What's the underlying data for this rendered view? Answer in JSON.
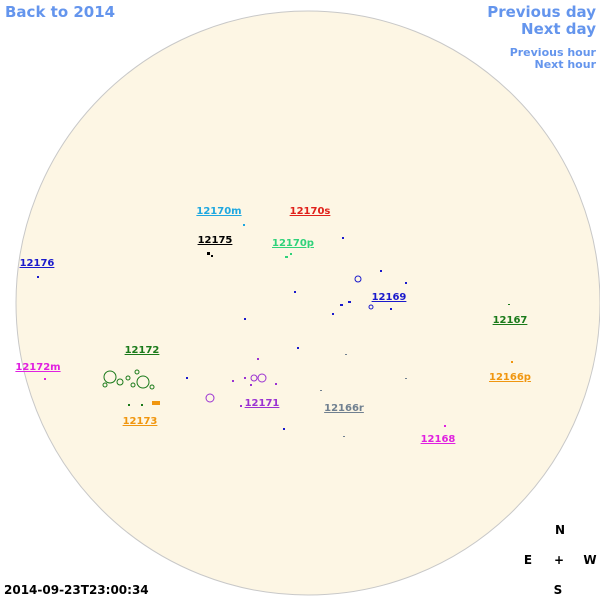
{
  "navigation": {
    "back": "Back to 2014",
    "previous_day": "Previous day",
    "next_day": "Next day",
    "previous_hour": "Previous hour",
    "next_hour": "Next hour"
  },
  "regions": [
    {
      "label": "12170m",
      "color": "#1ea7e0"
    },
    {
      "label": "12170s",
      "color": "#e0201a"
    },
    {
      "label": "12175",
      "color": "#000000"
    },
    {
      "label": "12170p",
      "color": "#2fd27a"
    },
    {
      "label": "12176",
      "color": "#1a1acc"
    },
    {
      "label": "12169",
      "color": "#1a1acc"
    },
    {
      "label": "12167",
      "color": "#1a7a1a"
    },
    {
      "label": "12172",
      "color": "#1a7a1a"
    },
    {
      "label": "12172m",
      "color": "#e020e0"
    },
    {
      "label": "12166p",
      "color": "#f0960f"
    },
    {
      "label": "12171",
      "color": "#9b32d2"
    },
    {
      "label": "12166r",
      "color": "#708090"
    },
    {
      "label": "12173",
      "color": "#f0960f"
    },
    {
      "label": "12168",
      "color": "#e020e0"
    }
  ],
  "compass": {
    "north": "N",
    "east": "E",
    "center": "+",
    "west": "W",
    "south": "S"
  },
  "timestamp": "2014-09-23T23:00:34"
}
